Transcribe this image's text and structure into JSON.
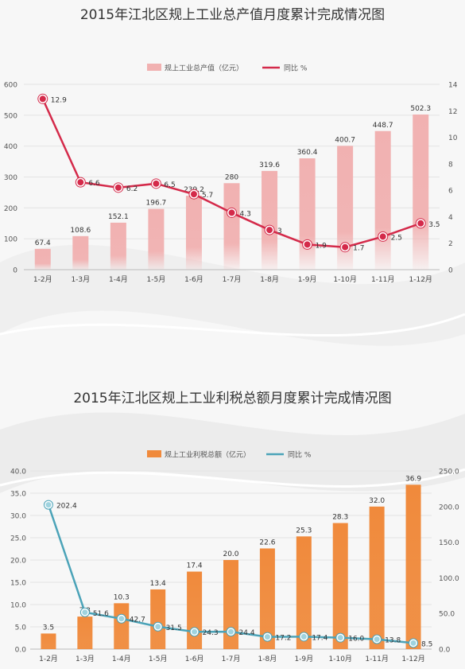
{
  "chart_data": [
    {
      "type": "bar",
      "title": "2015年江北区规上工业总产值月度累计完成情况图",
      "categories": [
        "1-2月",
        "1-3月",
        "1-4月",
        "1-5月",
        "1-6月",
        "1-7月",
        "1-8月",
        "1-9月",
        "1-10月",
        "1-11月",
        "1-12月"
      ],
      "series": [
        {
          "name": "规上工业总产值（亿元）",
          "type": "bar",
          "axis": "left",
          "color": "#f1b1b1",
          "values": [
            67.4,
            108.6,
            152.1,
            196.7,
            239.2,
            280,
            319.6,
            360.4,
            400.7,
            448.7,
            502.3
          ],
          "labels": [
            "67.4",
            "108.6",
            "152.1",
            "196.7",
            "239.2",
            "280",
            "319.6",
            "360.4",
            "400.7",
            "448.7",
            "502.3"
          ]
        },
        {
          "name": "同比  %",
          "type": "line",
          "axis": "right",
          "color": "#d42a4a",
          "values": [
            12.9,
            6.6,
            6.2,
            6.5,
            5.7,
            4.3,
            3,
            1.9,
            1.7,
            2.5,
            3.5
          ],
          "labels": [
            "12.9",
            "6.6",
            "6.2",
            "6.5",
            "5.7",
            "4.3",
            "3",
            "1.9",
            "1.7",
            "2.5",
            "3.5"
          ]
        }
      ],
      "ylim_left": [
        0,
        600
      ],
      "yticks_left": [
        "0",
        "100",
        "200",
        "300",
        "400",
        "500",
        "600"
      ],
      "ylim_right": [
        0,
        14
      ],
      "yticks_right": [
        "0",
        "2",
        "4",
        "6",
        "8",
        "10",
        "12",
        "14"
      ],
      "legend": "top-center"
    },
    {
      "type": "bar",
      "title": "2015年江北区规上工业利税总额月度累计完成情况图",
      "categories": [
        "1-2月",
        "1-3月",
        "1-4月",
        "1-5月",
        "1-6月",
        "1-7月",
        "1-8月",
        "1-9月",
        "1-10月",
        "1-11月",
        "1-12月"
      ],
      "series": [
        {
          "name": "规上工业利税总额（亿元）",
          "type": "bar",
          "axis": "left",
          "color": "#f08a3c",
          "values": [
            3.5,
            7.3,
            10.3,
            13.4,
            17.4,
            20.0,
            22.6,
            25.3,
            28.3,
            32.0,
            36.9
          ],
          "labels": [
            "3.5",
            "7.3",
            "10.3",
            "13.4",
            "17.4",
            "20.0",
            "22.6",
            "25.3",
            "28.3",
            "32.0",
            "36.9"
          ]
        },
        {
          "name": "同比  %",
          "type": "line",
          "axis": "right",
          "color": "#4ba3b8",
          "values": [
            202.4,
            51.6,
            42.7,
            31.5,
            24.3,
            24.4,
            17.2,
            17.4,
            16.0,
            13.8,
            8.5
          ],
          "labels": [
            "202.4",
            "51.6",
            "42.7",
            "31.5",
            "24.3",
            "24.4",
            "17.2",
            "17.4",
            "16.0",
            "13.8",
            "8.5"
          ]
        }
      ],
      "ylim_left": [
        0,
        40
      ],
      "yticks_left": [
        "0.0",
        "5.0",
        "10.0",
        "15.0",
        "20.0",
        "25.0",
        "30.0",
        "35.0",
        "40.0"
      ],
      "ylim_right": [
        0,
        250
      ],
      "yticks_right": [
        "0.0",
        "50.0",
        "100.0",
        "150.0",
        "200.0",
        "250.0"
      ],
      "legend": "top-center"
    }
  ]
}
